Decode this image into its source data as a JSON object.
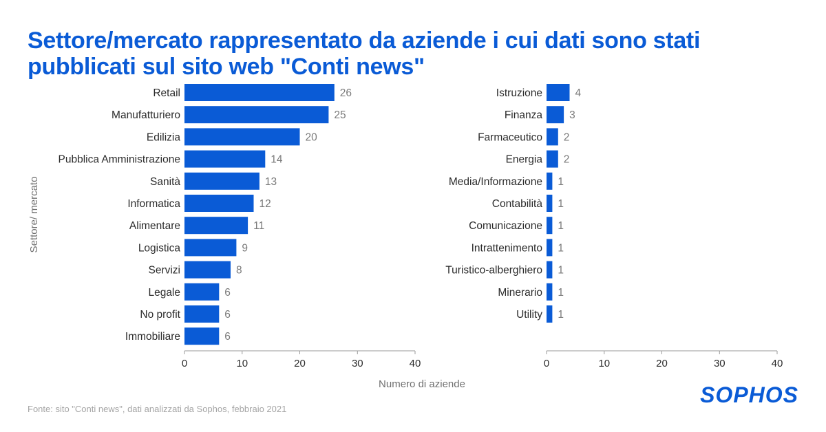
{
  "title": "Settore/mercato rappresentato da aziende i cui dati sono stati pubblicati sul sito web \"Conti news\"",
  "source": "Fonte: sito \"Conti news\", dati analizzati da Sophos, febbraio 2021",
  "logo": "SOPHOS",
  "colors": {
    "bar": "#0a5bd6",
    "title": "#0a5bd6",
    "axis": "#9a9a9a"
  },
  "chart_data": {
    "type": "bar",
    "orientation": "horizontal",
    "title": "Settore/mercato rappresentato da aziende i cui dati sono stati pubblicati sul sito web \"Conti news\"",
    "xlabel": "Numero di aziende",
    "ylabel": "Settore/ mercato",
    "xlim": [
      0,
      40
    ],
    "xticks": [
      0,
      10,
      20,
      30,
      40
    ],
    "grid": false,
    "panels": [
      {
        "categories": [
          "Retail",
          "Manufatturiero",
          "Edilizia",
          "Pubblica Amministrazione",
          "Sanità",
          "Informatica",
          "Alimentare",
          "Logistica",
          "Servizi",
          "Legale",
          "No profit",
          "Immobiliare"
        ],
        "values": [
          26,
          25,
          20,
          14,
          13,
          12,
          11,
          9,
          8,
          6,
          6,
          6
        ]
      },
      {
        "categories": [
          "Istruzione",
          "Finanza",
          "Farmaceutico",
          "Energia",
          "Media/Informazione",
          "Contabilità",
          "Comunicazione",
          "Intrattenimento",
          "Turistico-alberghiero",
          "Minerario",
          "Utility"
        ],
        "values": [
          4,
          3,
          2,
          2,
          1,
          1,
          1,
          1,
          1,
          1,
          1
        ]
      }
    ]
  }
}
